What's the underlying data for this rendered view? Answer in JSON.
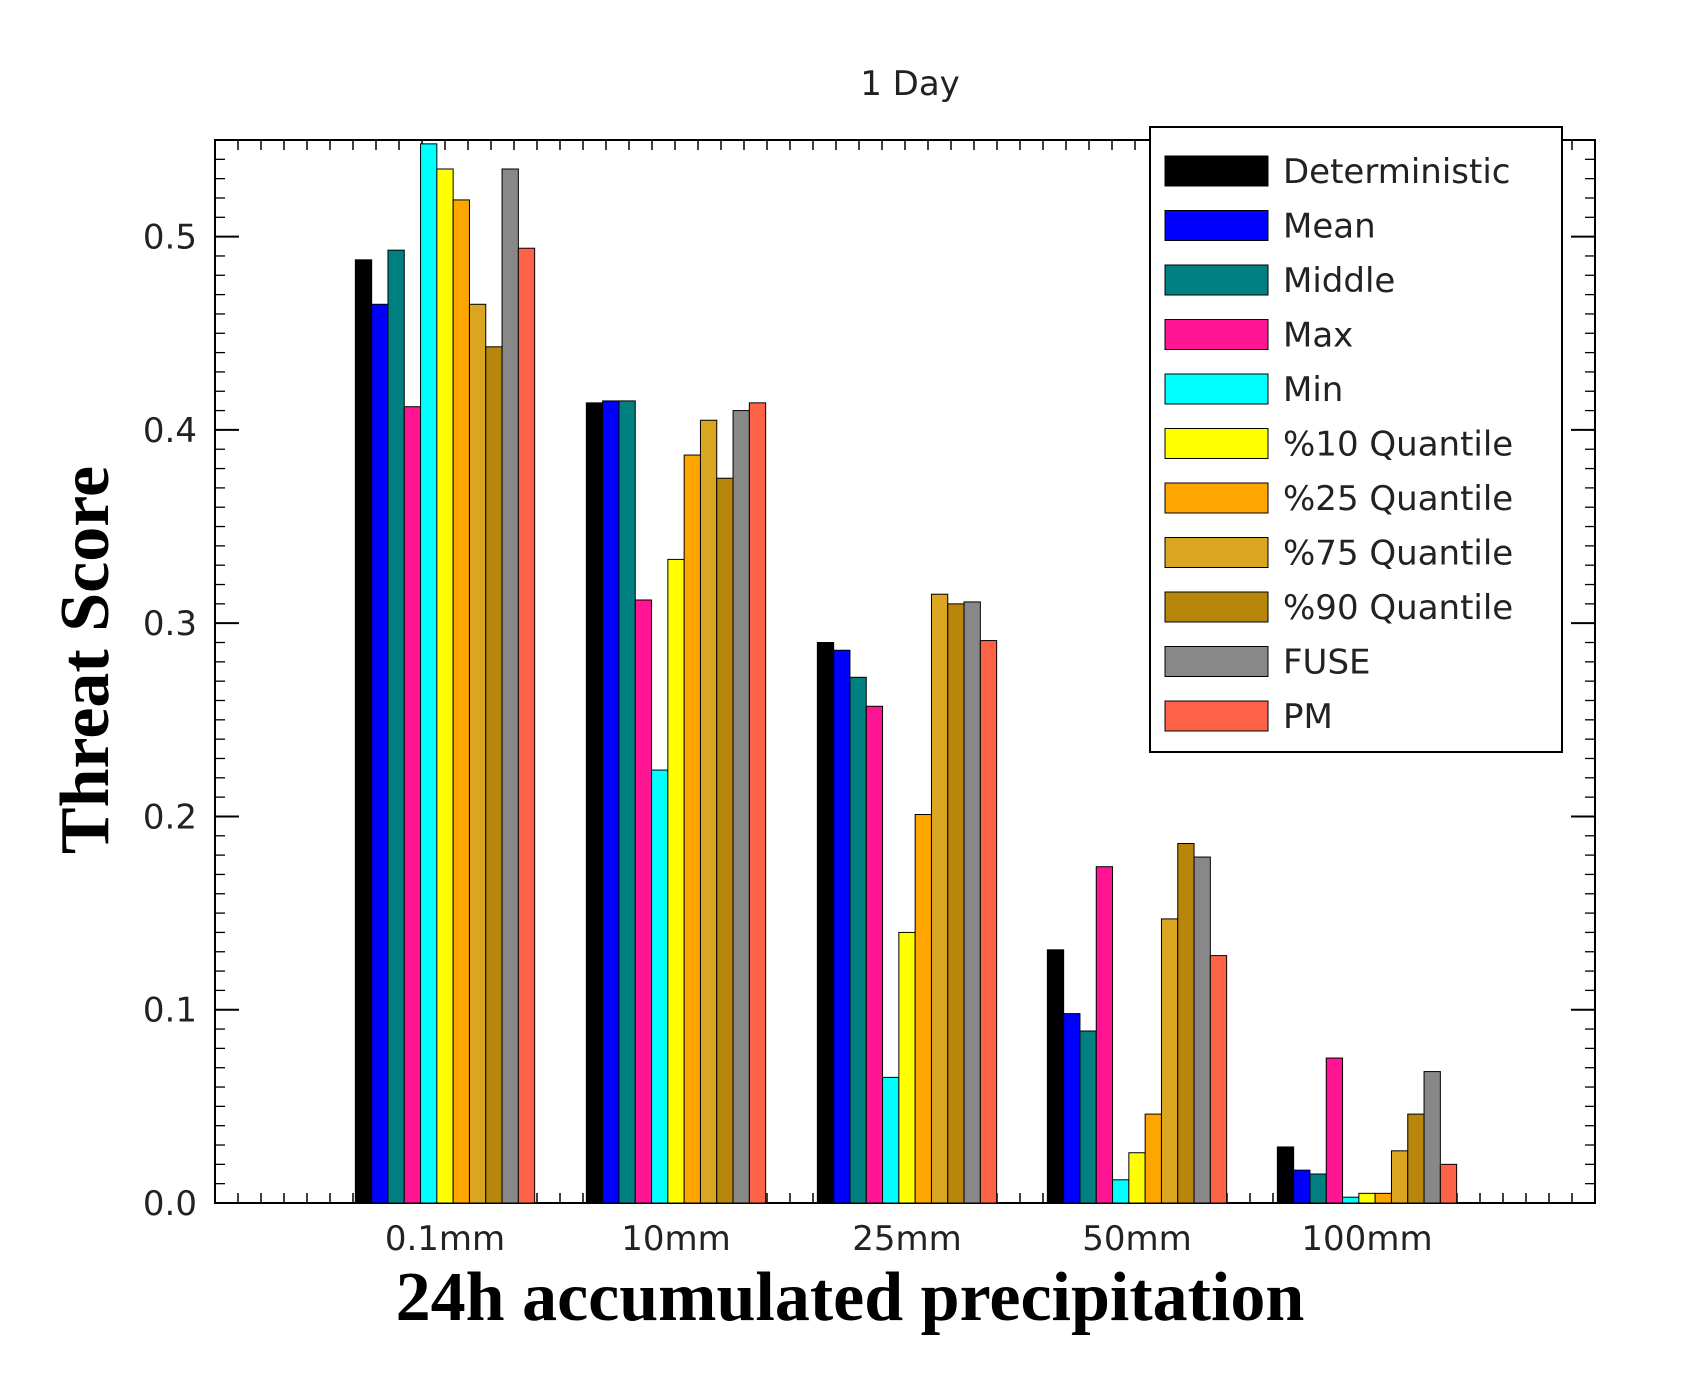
{
  "chart_data": {
    "type": "bar",
    "title": "1 Day",
    "xlabel": "24h accumulated precipitation",
    "ylabel": "Threat Score",
    "ylim": [
      0,
      0.55
    ],
    "yticks": [
      "0.0",
      "0.1",
      "0.2",
      "0.3",
      "0.4",
      "0.5"
    ],
    "categories": [
      "0.1mm",
      "10mm",
      "25mm",
      "50mm",
      "100mm"
    ],
    "legend_position": "top-right",
    "grid": false,
    "series": [
      {
        "name": "Deterministic",
        "color": "#000000",
        "values": [
          0.488,
          0.414,
          0.29,
          0.131,
          0.029
        ]
      },
      {
        "name": "Mean",
        "color": "#0000ff",
        "values": [
          0.465,
          0.415,
          0.286,
          0.098,
          0.017
        ]
      },
      {
        "name": "Middle",
        "color": "#008080",
        "values": [
          0.493,
          0.415,
          0.272,
          0.089,
          0.015
        ]
      },
      {
        "name": "Max",
        "color": "#ff1493",
        "values": [
          0.412,
          0.312,
          0.257,
          0.174,
          0.075
        ]
      },
      {
        "name": "Min",
        "color": "#00ffff",
        "values": [
          0.548,
          0.224,
          0.065,
          0.012,
          0.003
        ]
      },
      {
        "name": "%10 Quantile",
        "color": "#ffff00",
        "values": [
          0.535,
          0.333,
          0.14,
          0.026,
          0.005
        ]
      },
      {
        "name": "%25 Quantile",
        "color": "#ffa500",
        "values": [
          0.519,
          0.387,
          0.201,
          0.046,
          0.005
        ]
      },
      {
        "name": "%75 Quantile",
        "color": "#daa520",
        "values": [
          0.465,
          0.405,
          0.315,
          0.147,
          0.027
        ]
      },
      {
        "name": "%90 Quantile",
        "color": "#b8860b",
        "values": [
          0.443,
          0.375,
          0.31,
          0.186,
          0.046
        ]
      },
      {
        "name": "FUSE",
        "color": "#888888",
        "values": [
          0.535,
          0.41,
          0.311,
          0.179,
          0.068
        ]
      },
      {
        "name": "PM",
        "color": "#ff6347",
        "values": [
          0.494,
          0.414,
          0.291,
          0.128,
          0.02
        ]
      }
    ]
  }
}
